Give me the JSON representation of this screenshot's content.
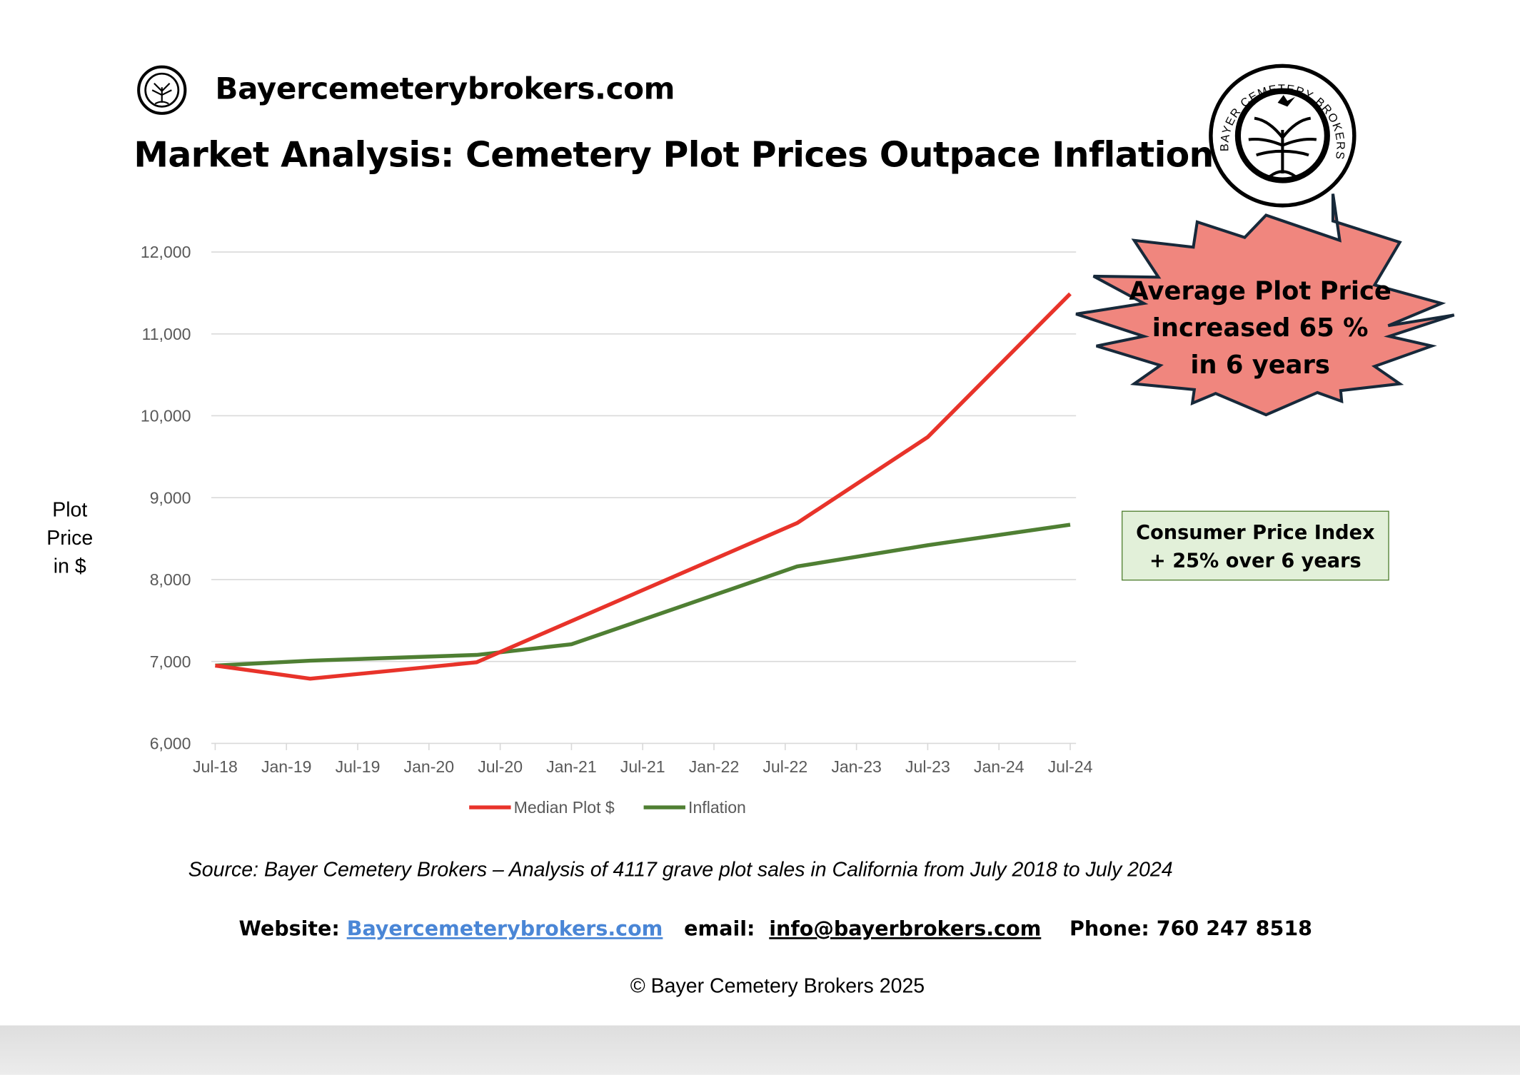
{
  "header": {
    "brand": "Bayercemeterybrokers.com",
    "title": "Market Analysis: Cemetery Plot Prices Outpace Inflation"
  },
  "logo": {
    "text": "BAYER CEMETERY BROKERS",
    "icon": "tree-dove-seal-icon"
  },
  "callouts": {
    "starburst": [
      "Average Plot Price",
      "increased 65 %",
      "in 6 years"
    ],
    "starburst_color": "#f0867e",
    "cpi": [
      "Consumer Price Index",
      "+ 25% over 6 years"
    ],
    "cpi_color": "#e2f0d9"
  },
  "chart_data": {
    "type": "line",
    "title": "",
    "xlabel": "",
    "ylabel": "Plot Price in $",
    "ylabel_lines": [
      "Plot",
      "Price",
      "in $"
    ],
    "ylim": [
      6000,
      12000
    ],
    "yticks": [
      "6,000",
      "7,000",
      "8,000",
      "9,000",
      "10,000",
      "11,000",
      "12,000"
    ],
    "xticks": [
      "Jul-18",
      "Jan-19",
      "Jul-19",
      "Jan-20",
      "Jul-20",
      "Jan-21",
      "Jul-21",
      "Jan-22",
      "Jul-22",
      "Jan-23",
      "Jul-23",
      "Jan-24",
      "Jul-24"
    ],
    "grid": true,
    "legend_position": "bottom",
    "series": [
      {
        "name": "Median Plot $",
        "color": "#e8332a",
        "points": [
          [
            "2018-07",
            6950
          ],
          [
            "2019-03",
            6790
          ],
          [
            "2020-05",
            6990
          ],
          [
            "2022-08",
            8690
          ],
          [
            "2023-07",
            9740
          ],
          [
            "2024-07",
            11490
          ]
        ]
      },
      {
        "name": "Inflation",
        "color": "#4f7f33",
        "points": [
          [
            "2018-07",
            6950
          ],
          [
            "2019-03",
            7010
          ],
          [
            "2020-05",
            7080
          ],
          [
            "2021-01",
            7210
          ],
          [
            "2022-08",
            8160
          ],
          [
            "2023-07",
            8420
          ],
          [
            "2024-07",
            8670
          ]
        ]
      }
    ]
  },
  "footer": {
    "source": "Source: Bayer Cemetery Brokers – Analysis of 4117 grave plot sales in California from July 2018 to July 2024",
    "website_label": "Website:",
    "website": "Bayercemeterybrokers.com",
    "email_label": "email:",
    "email": "info@bayerbrokers.com",
    "phone": "Phone: 760 247 8518",
    "copyright": "© Bayer Cemetery Brokers 2025"
  }
}
